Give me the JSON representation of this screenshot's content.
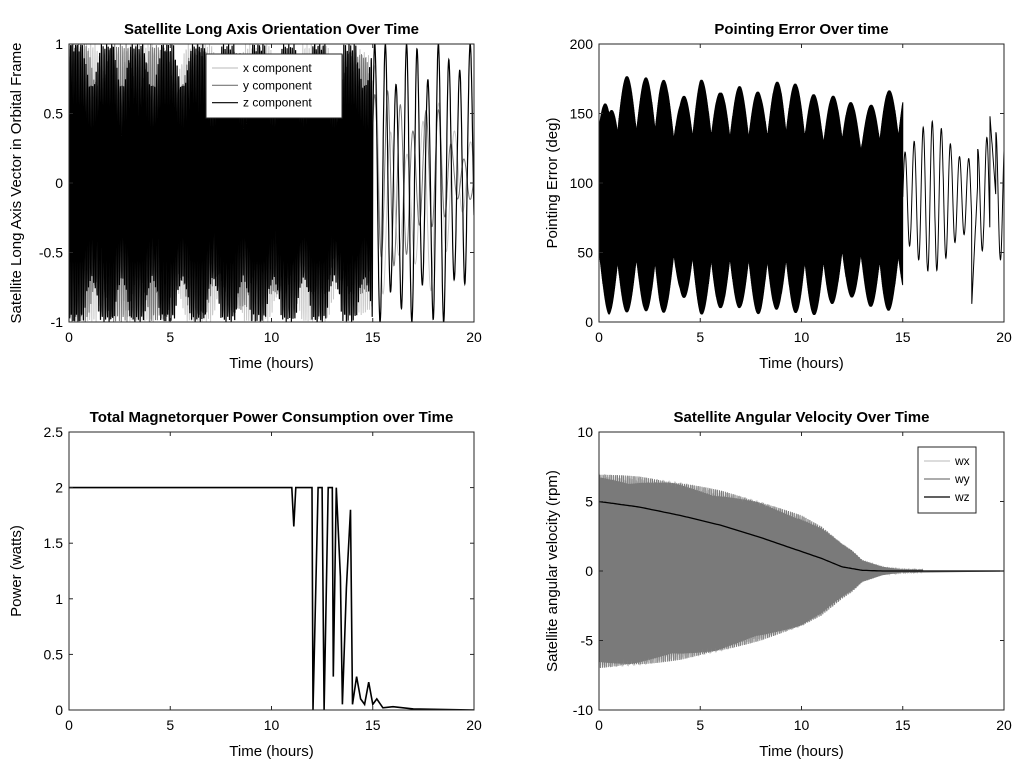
{
  "chart_data": [
    {
      "type": "line",
      "title": "Satellite Long Axis Orientation Over Time",
      "xlabel": "Time (hours)",
      "ylabel": "Satellite Long Axis Vector in Orbital Frame",
      "xlim": [
        0,
        20
      ],
      "ylim": [
        -1,
        1
      ],
      "xticks": [
        "0",
        "5",
        "10",
        "15",
        "20"
      ],
      "yticks": [
        "-1",
        "-0.5",
        "0",
        "0.5",
        "1"
      ],
      "grid": false,
      "legend": "top-right",
      "series": [
        {
          "name": "x component",
          "color": "#c8c8c8",
          "description_values": {
            "x": [
              0,
              2,
              4,
              6,
              8,
              10,
              12,
              14,
              15,
              16,
              17,
              18,
              19,
              20
            ],
            "min": [
              -1,
              -1,
              -1,
              -1,
              -1,
              -1,
              -1,
              -1,
              -0.9,
              -0.7,
              -0.6,
              -0.8,
              -0.4,
              -0.2
            ],
            "max": [
              1,
              1,
              1,
              1,
              1,
              1,
              1,
              1,
              0.9,
              0.4,
              0.3,
              0.6,
              0.5,
              0.3
            ]
          }
        },
        {
          "name": "y component",
          "color": "#777777",
          "description_values": {
            "x": [
              0,
              2,
              4,
              6,
              8,
              10,
              12,
              14,
              15,
              16,
              17,
              18,
              19,
              20
            ],
            "min": [
              -1,
              -1,
              -1,
              -0.95,
              -0.95,
              -0.8,
              -0.8,
              -0.8,
              -0.8,
              -0.6,
              -0.5,
              -0.3,
              -0.2,
              -0.1
            ],
            "max": [
              1,
              1,
              1,
              0.95,
              0.95,
              0.9,
              0.9,
              0.95,
              0.9,
              0.6,
              0.5,
              0.6,
              0.3,
              0.1
            ]
          }
        },
        {
          "name": "z component",
          "color": "#000000",
          "description_values": {
            "x": [
              0,
              2,
              4,
              6,
              8,
              10,
              12,
              14,
              15,
              16,
              17,
              18,
              19,
              20
            ],
            "min": [
              -1,
              -1,
              -1,
              -1,
              -1,
              -1,
              -1,
              -1,
              -1,
              -1,
              -1,
              -1,
              -1,
              -0.5
            ],
            "max": [
              1,
              1,
              1,
              1,
              1,
              1,
              1,
              1,
              1,
              1,
              1,
              1,
              1,
              1
            ]
          }
        }
      ]
    },
    {
      "type": "line",
      "title": "Pointing Error Over time",
      "xlabel": "Time (hours)",
      "ylabel": "Pointing Error (deg)",
      "xlim": [
        0,
        20
      ],
      "ylim": [
        0,
        200
      ],
      "xticks": [
        "0",
        "5",
        "10",
        "15",
        "20"
      ],
      "yticks": [
        "0",
        "50",
        "100",
        "150",
        "200"
      ],
      "grid": false,
      "series": [
        {
          "name": "",
          "color": "#000000",
          "envelope": {
            "x": [
              0,
              0.5,
              1,
              2,
              3,
              4,
              5,
              6,
              7,
              8,
              9,
              10,
              11,
              12,
              13,
              14,
              15
            ],
            "upper": [
              180,
              150,
              178,
              175,
              178,
              160,
              175,
              165,
              170,
              165,
              175,
              170,
              160,
              165,
              150,
              165,
              170
            ],
            "lower": [
              20,
              5,
              5,
              10,
              3,
              20,
              5,
              10,
              10,
              5,
              10,
              5,
              5,
              20,
              15,
              5,
              15
            ]
          },
          "tail": {
            "x": [
              15,
              15.5,
              16,
              16.5,
              17,
              17.5,
              18,
              18.5,
              19,
              19.5,
              20
            ],
            "y": [
              100,
              160,
              40,
              150,
              60,
              140,
              100,
              90,
              10,
              150,
              85
            ]
          }
        }
      ]
    },
    {
      "type": "line",
      "title": "Total Magnetorquer Power Consumption over Time",
      "xlabel": "Time (hours)",
      "ylabel": "Power (watts)",
      "xlim": [
        0,
        20
      ],
      "ylim": [
        0,
        2.5
      ],
      "xticks": [
        "0",
        "5",
        "10",
        "15",
        "20"
      ],
      "yticks": [
        "0",
        "0.5",
        "1",
        "1.5",
        "2",
        "2.5"
      ],
      "grid": false,
      "series": [
        {
          "name": "",
          "color": "#000000",
          "x": [
            0,
            11,
            11.1,
            11.2,
            11.5,
            12,
            12.05,
            12.3,
            12.5,
            12.6,
            12.8,
            13,
            13.05,
            13.2,
            13.4,
            13.5,
            13.7,
            13.9,
            14,
            14.2,
            14.4,
            14.6,
            14.8,
            15,
            15.2,
            15.5,
            16,
            17,
            20
          ],
          "y": [
            2,
            2,
            1.65,
            2,
            2,
            2,
            0,
            2,
            2,
            0,
            2,
            2,
            0.3,
            2,
            1.2,
            0.05,
            1.1,
            1.8,
            0.05,
            0.3,
            0.1,
            0.05,
            0.25,
            0.05,
            0.1,
            0.02,
            0.03,
            0.01,
            0
          ]
        }
      ]
    },
    {
      "type": "line",
      "title": "Satellite Angular Velocity Over Time",
      "xlabel": "Time (hours)",
      "ylabel": "Satellite angular velocity (rpm)",
      "xlim": [
        0,
        20
      ],
      "ylim": [
        -10,
        10
      ],
      "xticks": [
        "0",
        "5",
        "10",
        "15",
        "20"
      ],
      "yticks": [
        "-10",
        "-5",
        "0",
        "5",
        "10"
      ],
      "grid": false,
      "legend": "top-right",
      "series": [
        {
          "name": "wx",
          "color": "#c8c8c8",
          "envelope": {
            "x": [
              0,
              2,
              4,
              6,
              8,
              10,
              11,
              12,
              12.5,
              13,
              14,
              15,
              20
            ],
            "amp": [
              7,
              6.8,
              6.4,
              5.8,
              5,
              4,
              3.2,
              2,
              1.5,
              0.8,
              0.3,
              0.1,
              0
            ]
          }
        },
        {
          "name": "wy",
          "color": "#7a7a7a",
          "envelope": {
            "x": [
              0,
              2,
              4,
              6,
              8,
              10,
              11,
              12,
              12.5,
              13,
              14,
              15,
              20
            ],
            "amp": [
              7,
              6.8,
              6.4,
              5.8,
              5,
              4,
              3.2,
              2,
              1.5,
              0.8,
              0.3,
              0.1,
              0
            ]
          }
        },
        {
          "name": "wz",
          "color": "#000000",
          "x": [
            0,
            2,
            4,
            6,
            8,
            10,
            11,
            12,
            13,
            14,
            15,
            16,
            20
          ],
          "y": [
            5,
            4.6,
            4,
            3.3,
            2.4,
            1.4,
            0.9,
            0.3,
            0.05,
            0,
            0,
            0,
            0
          ]
        }
      ]
    }
  ]
}
